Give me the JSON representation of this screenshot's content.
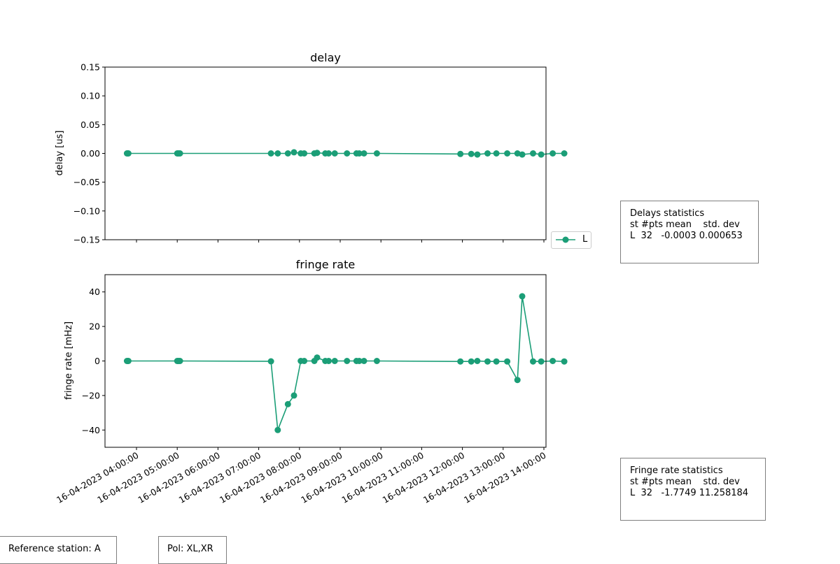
{
  "chart_data": [
    {
      "type": "line",
      "title": "delay",
      "ylabel": "delay [us]",
      "ylim": [
        -0.15,
        0.15
      ],
      "yticks": [
        "−0.15",
        "−0.10",
        "−0.05",
        "0.00",
        "0.05",
        "0.10",
        "0.15"
      ],
      "ytick_values": [
        -0.15,
        -0.1,
        -0.05,
        0.0,
        0.05,
        0.1,
        0.15
      ],
      "color": "#1b9e77",
      "series": [
        {
          "name": "L",
          "x": [
            "03:46",
            "03:47",
            "03:48",
            "05:00",
            "05:02",
            "05:04",
            "07:18",
            "07:28",
            "07:43",
            "07:52",
            "08:02",
            "08:07",
            "08:22",
            "08:26",
            "08:38",
            "08:43",
            "08:52",
            "09:10",
            "09:24",
            "09:28",
            "09:35",
            "09:54",
            "11:57",
            "12:13",
            "12:22",
            "12:37",
            "12:50",
            "13:06",
            "13:21",
            "13:28",
            "13:44",
            "13:56",
            "14:13",
            "14:30"
          ],
          "y": [
            0,
            0,
            0,
            0,
            0,
            0,
            0,
            0,
            0,
            0.002,
            0,
            0,
            0,
            0.001,
            0,
            0,
            0,
            0,
            0,
            0,
            0,
            0,
            -0.001,
            -0.001,
            -0.002,
            0,
            0,
            0,
            0,
            -0.002,
            0,
            -0.002,
            0,
            0
          ]
        }
      ]
    },
    {
      "type": "line",
      "title": "fringe rate",
      "ylabel": "fringe rate [mHz]",
      "ylim": [
        -50,
        50
      ],
      "yticks": [
        "−40",
        "−20",
        "0",
        "20",
        "40"
      ],
      "ytick_values": [
        -40,
        -20,
        0,
        20,
        40
      ],
      "xticks": [
        "16-04-2023 04:00:00",
        "16-04-2023 05:00:00",
        "16-04-2023 06:00:00",
        "16-04-2023 07:00:00",
        "16-04-2023 08:00:00",
        "16-04-2023 09:00:00",
        "16-04-2023 10:00:00",
        "16-04-2023 11:00:00",
        "16-04-2023 12:00:00",
        "16-04-2023 13:00:00",
        "16-04-2023 14:00:00"
      ],
      "color": "#1b9e77",
      "series": [
        {
          "name": "L",
          "x": [
            "03:46",
            "03:47",
            "03:48",
            "05:00",
            "05:02",
            "05:04",
            "07:18",
            "07:28",
            "07:43",
            "07:52",
            "08:02",
            "08:07",
            "08:22",
            "08:26",
            "08:38",
            "08:43",
            "08:52",
            "09:10",
            "09:24",
            "09:28",
            "09:35",
            "09:54",
            "11:57",
            "12:13",
            "12:22",
            "12:37",
            "12:50",
            "13:06",
            "13:21",
            "13:28",
            "13:44",
            "13:56",
            "14:13",
            "14:30"
          ],
          "y": [
            0,
            0,
            0,
            0,
            0,
            0,
            -0.2,
            -40,
            -25,
            -20,
            0,
            0,
            0,
            2,
            0,
            0,
            0,
            0,
            0,
            0,
            0,
            0,
            -0.3,
            -0.3,
            0,
            -0.3,
            -0.3,
            -0.3,
            -11,
            37.5,
            -0.3,
            -0.3,
            0,
            -0.3
          ]
        }
      ]
    }
  ],
  "legend": {
    "label": "L",
    "placement": "right of delay panel"
  },
  "delay_stats": {
    "title": "Delays statistics",
    "header": "st #pts mean    std. dev",
    "row": "L  32   -0.0003 0.000653"
  },
  "fringe_stats": {
    "title": "Fringe rate statistics",
    "header": "st #pts mean    std. dev",
    "row": "L  32   -1.7749 11.258184"
  },
  "reference_station": "Reference station: A",
  "polarization": "Pol: XL,XR"
}
